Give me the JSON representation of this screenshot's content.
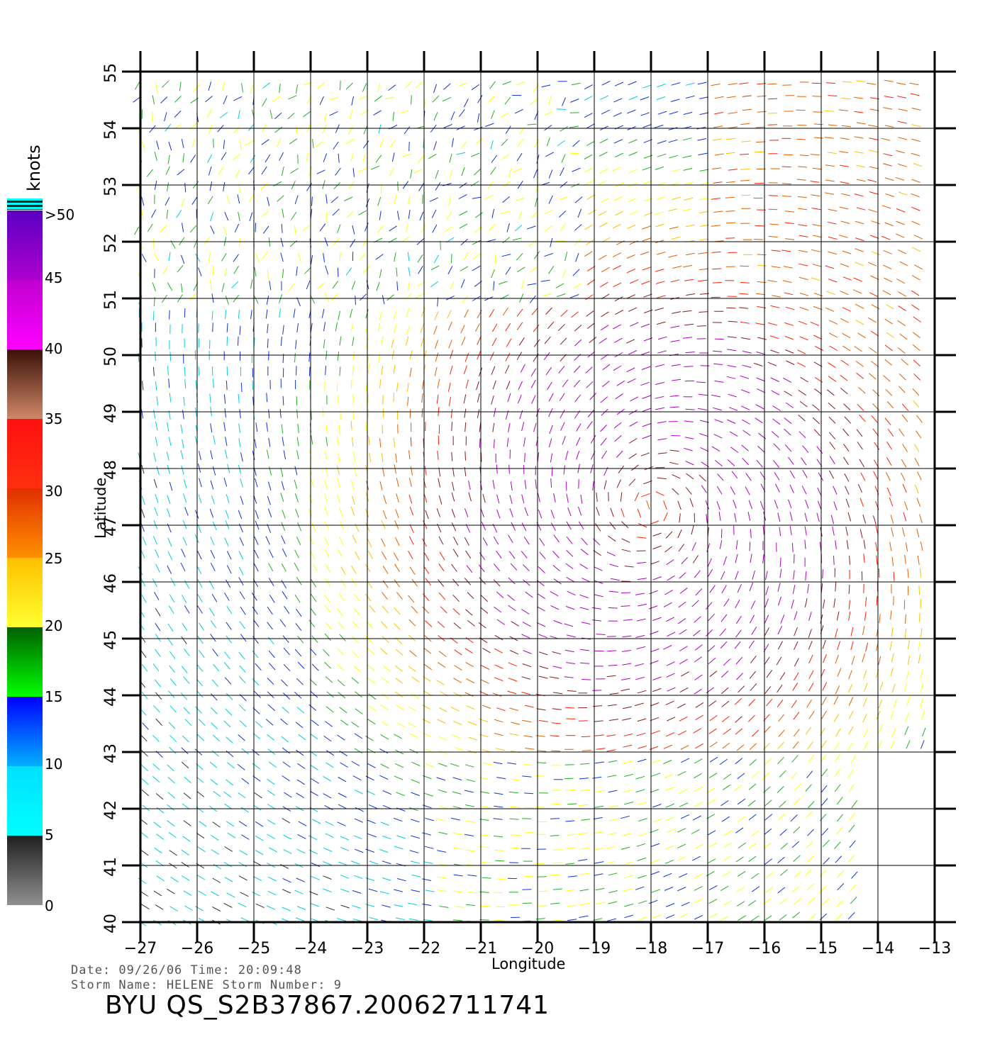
{
  "map": {
    "xlabel": "Longitude",
    "ylabel": "Latitude",
    "lon_ticks": [
      "-27",
      "-26",
      "-25",
      "-24",
      "-23",
      "-22",
      "-21",
      "-20",
      "-19",
      "-18",
      "-17",
      "-16",
      "-15",
      "-14",
      "-13"
    ],
    "lat_ticks": [
      "40",
      "41",
      "42",
      "43",
      "44",
      "45",
      "46",
      "47",
      "48",
      "49",
      "50",
      "51",
      "52",
      "53",
      "54",
      "55"
    ],
    "lon_range": [
      -27,
      -13
    ],
    "lat_range": [
      40,
      55
    ]
  },
  "colorbar": {
    "units": "knots",
    "labels": [
      ">50",
      "45",
      "40",
      "35",
      "30",
      "25",
      "20",
      "15",
      "10",
      "5",
      "0"
    ],
    "bands": [
      "#6a00c8",
      "#ff00ff",
      "#3a1a00",
      "#c08060",
      "#ff2020",
      "#ff4000",
      "#ff8000",
      "#ffd000",
      "#ffff40",
      "#00c000",
      "#0000ff",
      "#0060ff",
      "#00ffff",
      "#202020",
      "#808080"
    ]
  },
  "footer": {
    "date_line": "Date: 09/26/06   Time: 20:09:48",
    "storm_line": "Storm Name: HELENE   Storm Number: 9",
    "id_line": "BYU QS_S2B37867.20062711741"
  }
}
